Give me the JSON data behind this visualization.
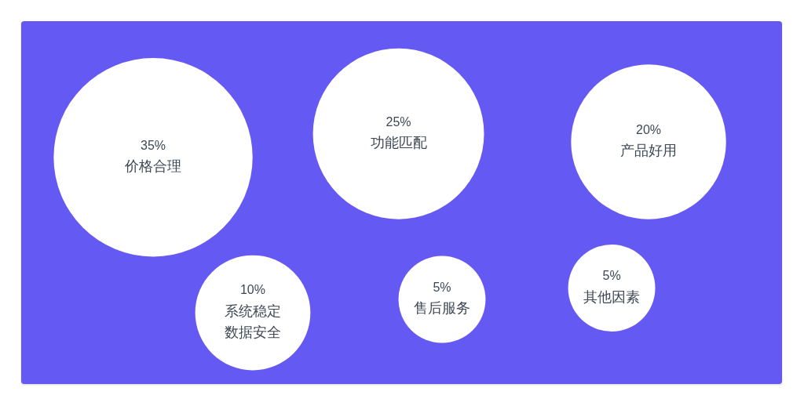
{
  "chart_data": {
    "type": "other",
    "categories": [
      "价格合理",
      "功能匹配",
      "产品好用",
      "系统稳定数据安全",
      "售后服务",
      "其他因素"
    ],
    "values": [
      35,
      25,
      20,
      10,
      5,
      5
    ],
    "value_labels": [
      "35%",
      "25%",
      "20%",
      "10%",
      "5%",
      "5%"
    ],
    "colors": [
      "#ffffff",
      "#ffffff",
      "#ffffff",
      "#ffffff",
      "#ffffff",
      "#ffffff"
    ]
  }
}
